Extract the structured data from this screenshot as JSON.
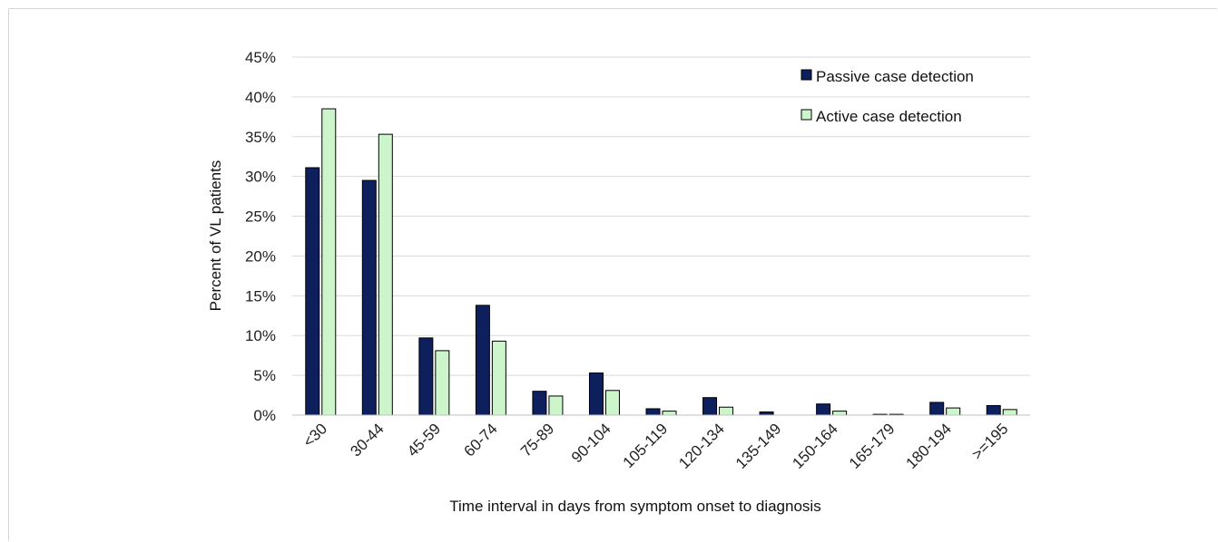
{
  "chart_data": {
    "type": "bar",
    "title": "",
    "xlabel": "Time interval in days from symptom onset to diagnosis",
    "ylabel": "Percent of VL patients",
    "ylim": [
      0,
      45
    ],
    "yticks": [
      "0%",
      "5%",
      "10%",
      "15%",
      "20%",
      "25%",
      "30%",
      "35%",
      "40%",
      "45%"
    ],
    "ytick_values": [
      0,
      5,
      10,
      15,
      20,
      25,
      30,
      35,
      40,
      45
    ],
    "categories": [
      "<30",
      "30-44",
      "45-59",
      "60-74",
      "75-89",
      "90-104",
      "105-119",
      "120-134",
      "135-149",
      "150-164",
      "165-179",
      "180-194",
      ">=195"
    ],
    "series": [
      {
        "name": "Passive case detection",
        "color": "#0d1f5c",
        "values": [
          31.1,
          29.5,
          9.7,
          13.8,
          3.0,
          5.3,
          0.8,
          2.2,
          0.4,
          1.4,
          0.1,
          1.6,
          1.2
        ]
      },
      {
        "name": "Active case detection",
        "color": "#ccf5cc",
        "values": [
          38.5,
          35.3,
          8.1,
          9.3,
          2.4,
          3.1,
          0.5,
          1.0,
          0.0,
          0.5,
          0.1,
          0.9,
          0.7
        ]
      }
    ],
    "grid": true,
    "legend_position": "top-right"
  }
}
